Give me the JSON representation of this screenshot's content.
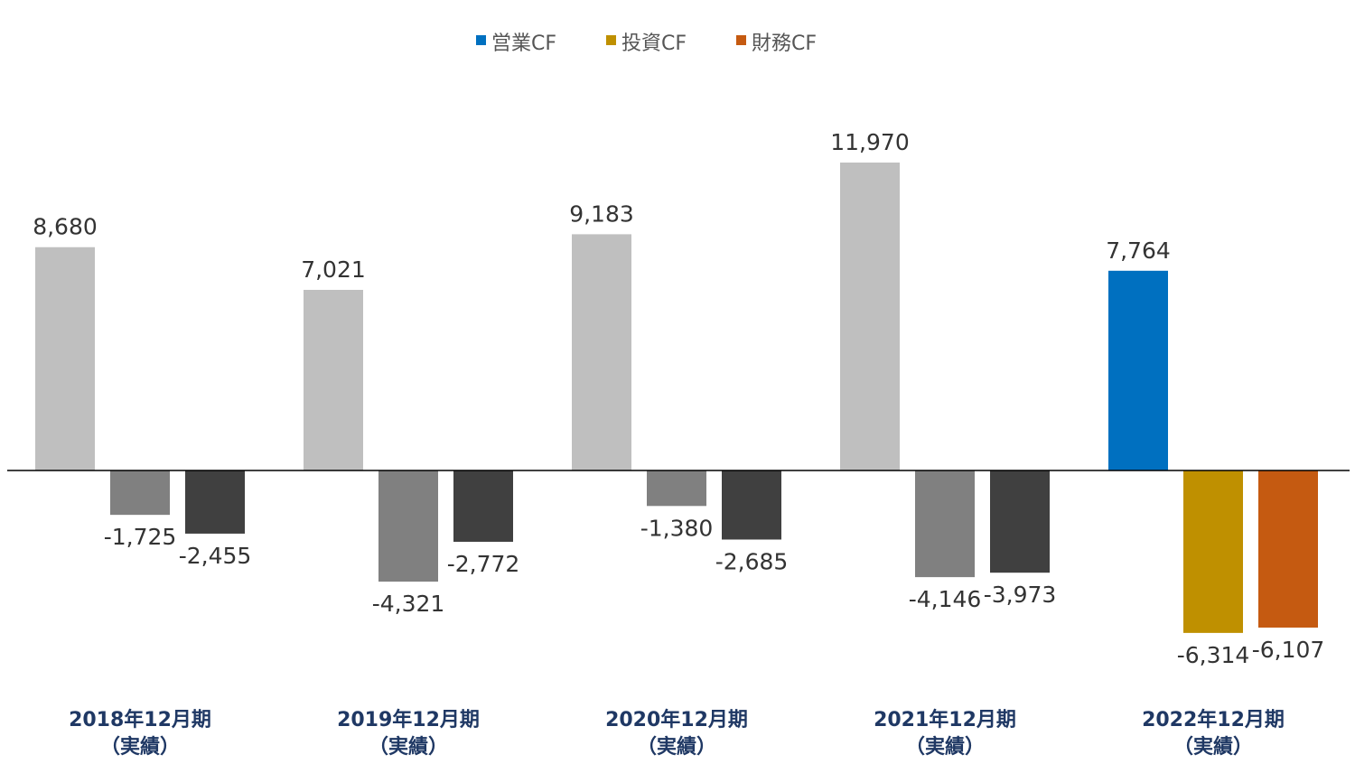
{
  "chart_data": {
    "type": "bar",
    "categories": [
      [
        "2018年12月期",
        "（実績）"
      ],
      [
        "2019年12月期",
        "（実績）"
      ],
      [
        "2020年12月期",
        "（実績）"
      ],
      [
        "2021年12月期",
        "（実績）"
      ],
      [
        "2022年12月期",
        "（実績）"
      ]
    ],
    "series": [
      {
        "name": "営業CF",
        "values": [
          8680,
          7021,
          9183,
          11970,
          7764
        ],
        "labels": [
          "8,680",
          "7,021",
          "9,183",
          "11,970",
          "7,764"
        ],
        "colors": [
          "#bfbfbf",
          "#bfbfbf",
          "#bfbfbf",
          "#bfbfbf",
          "#0070c0"
        ]
      },
      {
        "name": "投資CF",
        "values": [
          -1725,
          -4321,
          -1380,
          -4146,
          -6314
        ],
        "labels": [
          "-1,725",
          "-4,321",
          "-1,380",
          "-4,146",
          "-6,314"
        ],
        "colors": [
          "#808080",
          "#808080",
          "#808080",
          "#808080",
          "#bf9000"
        ]
      },
      {
        "name": "財務CF",
        "values": [
          -2455,
          -2772,
          -2685,
          -3973,
          -6107
        ],
        "labels": [
          "-2,455",
          "-2,772",
          "-2,685",
          "-3,973",
          "-6,107"
        ],
        "colors": [
          "#404040",
          "#404040",
          "#404040",
          "#404040",
          "#c55a11"
        ]
      }
    ],
    "legend": {
      "position": "top-center",
      "items": [
        {
          "name": "営業CF",
          "color": "#0070c0"
        },
        {
          "name": "投資CF",
          "color": "#bf9000"
        },
        {
          "name": "財務CF",
          "color": "#c55a11"
        }
      ]
    },
    "ylim": [
      -7000,
      13000
    ],
    "grid": false,
    "baseline": 0
  }
}
